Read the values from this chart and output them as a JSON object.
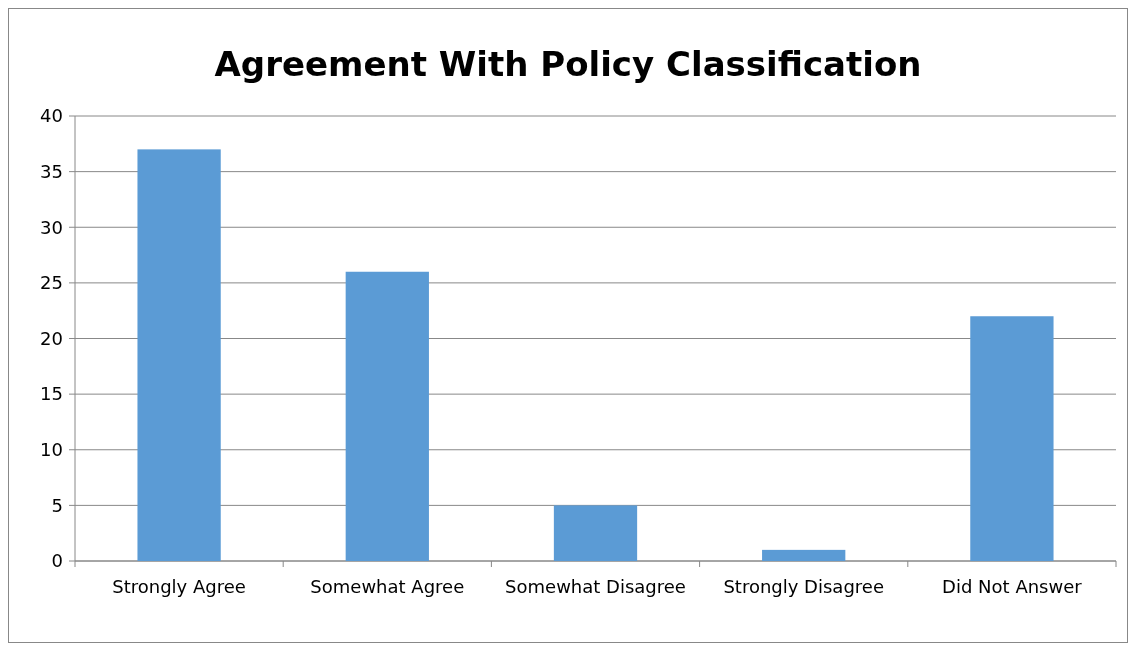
{
  "chart_data": {
    "type": "bar",
    "title": "Agreement With Policy Classification",
    "categories": [
      "Strongly Agree",
      "Somewhat Agree",
      "Somewhat Disagree",
      "Strongly Disagree",
      "Did Not Answer"
    ],
    "values": [
      37,
      26,
      5,
      1,
      22
    ],
    "color": "#5b9bd5",
    "ylim": [
      0,
      40
    ],
    "yticks": [
      0,
      5,
      10,
      15,
      20,
      25,
      30,
      35,
      40
    ],
    "grid": "y"
  }
}
